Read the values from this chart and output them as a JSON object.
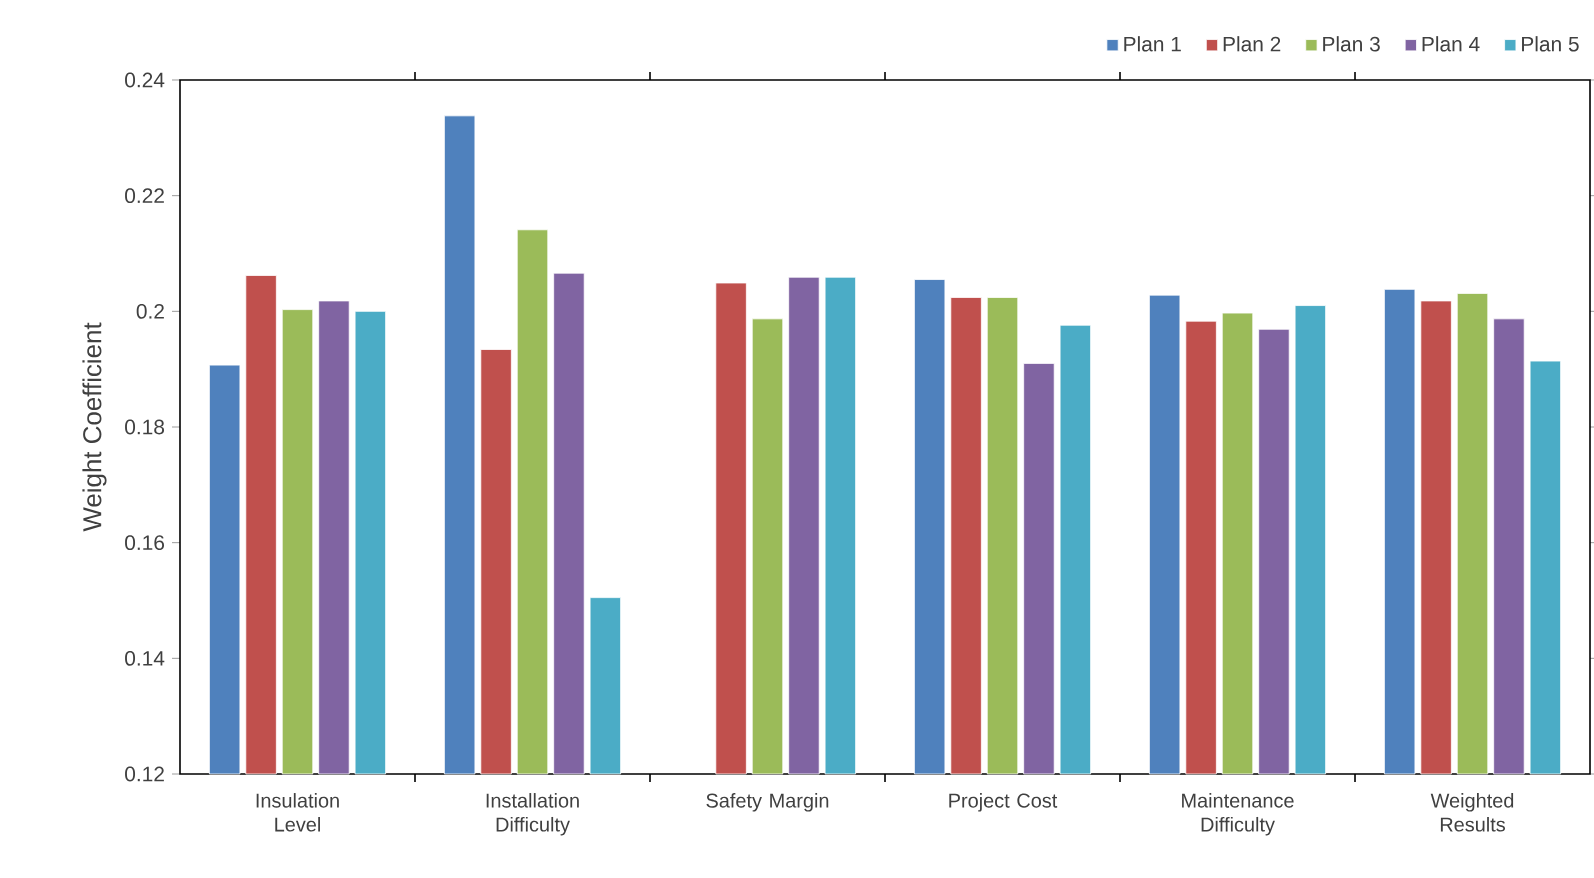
{
  "chart_data": {
    "type": "bar",
    "ylabel": "Weight Coefficient",
    "categories": [
      "Insulation Level",
      "Installation Difficulty",
      "Safety Margin",
      "Project Cost",
      "Maintenance Difficulty",
      "Weighted Results"
    ],
    "series": [
      {
        "name": "Plan 1",
        "color": "#4f81bd",
        "values": [
          0.1907,
          0.2338,
          null,
          0.2055,
          0.2028,
          0.2038
        ]
      },
      {
        "name": "Plan 2",
        "color": "#c0504d",
        "values": [
          0.2062,
          0.1934,
          0.2049,
          0.2024,
          0.1983,
          0.2018
        ]
      },
      {
        "name": "Plan 3",
        "color": "#9bbb59",
        "values": [
          0.2003,
          0.2141,
          0.1987,
          0.2024,
          0.1997,
          0.2031
        ]
      },
      {
        "name": "Plan 4",
        "color": "#8064a2",
        "values": [
          0.2018,
          0.2066,
          0.2059,
          0.191,
          0.1969,
          0.1987
        ]
      },
      {
        "name": "Plan 5",
        "color": "#4bacc6",
        "values": [
          0.2,
          0.1505,
          0.2059,
          0.1976,
          0.201,
          0.1914
        ]
      }
    ],
    "ylim": [
      0.12,
      0.24
    ],
    "yticks": [
      0.12,
      0.14,
      0.16,
      0.18,
      0.2,
      0.22,
      0.24
    ],
    "grid": false,
    "legend": "top right"
  }
}
